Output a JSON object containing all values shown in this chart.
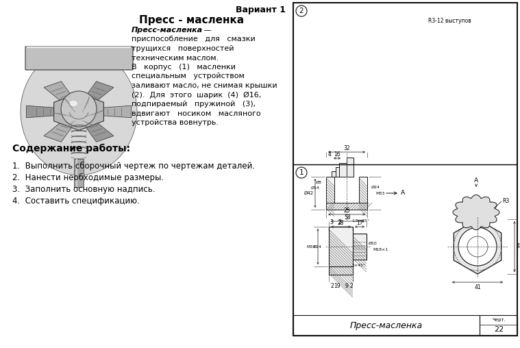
{
  "title": "Вариант 1",
  "subject_title": "Пресс - масленка",
  "para_bold": "Пресс-масленка",
  "para_dash": " — ",
  "para_lines": [
    "приспособление   для   смазки",
    "трущихся   поверхностей",
    "техническим маслом.",
    "В   корпус   (1)   масленки",
    "специальным   устройством",
    "заливают масло, не снимая крышки",
    "(2).  Для  этого  шарик  (4)  Ø16,",
    "подпираемый   пружиной   (3),",
    "вдвигают   носиком   масляного",
    "устройства вовнутрь."
  ],
  "content_title": "Содержание работы:",
  "content_items": [
    "Выполнить сборочный чертеж по чертежам деталей.",
    "Нанести необходимые размеры.",
    "Заполнить основную надпись.",
    "Составить спецификацию."
  ],
  "drawing_title": "Пресс-масленка",
  "chert_label": "Черт.",
  "drawing_number": "22",
  "note_upper": "R3-12 выступов",
  "section_label": "А",
  "r3_label": "R3",
  "bg_color": "#ffffff"
}
